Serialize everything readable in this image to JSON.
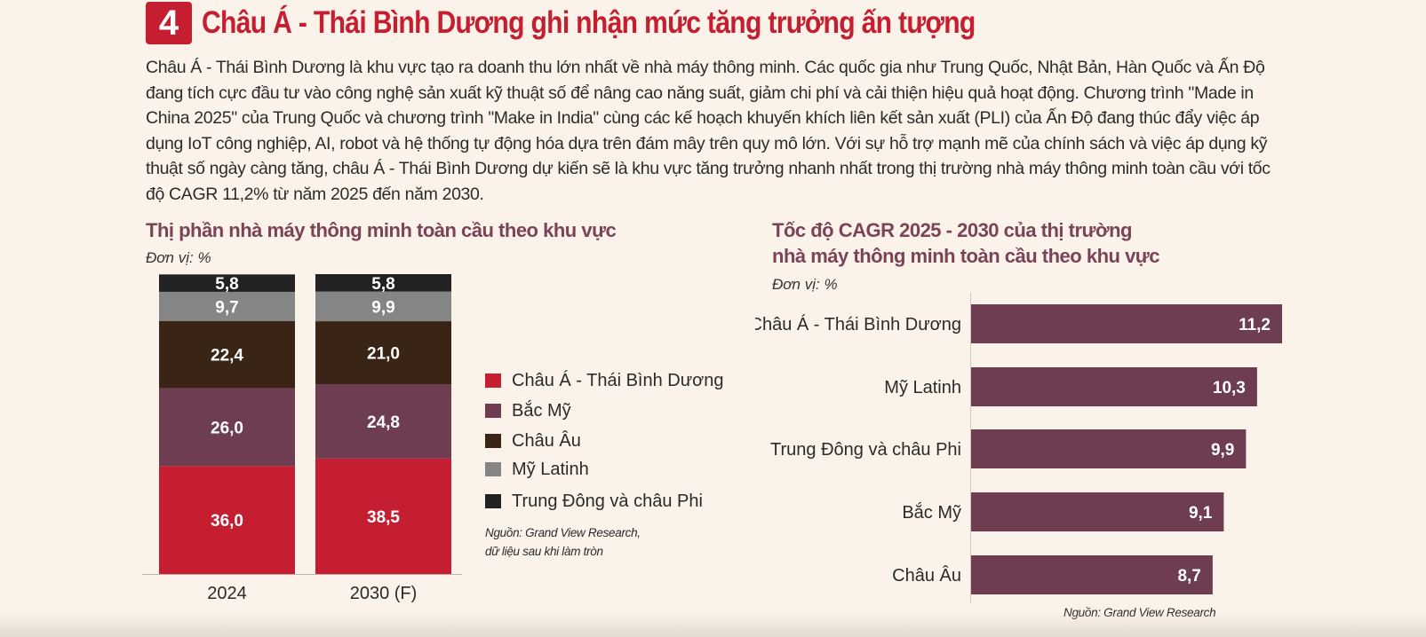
{
  "header": {
    "number": "4",
    "title": "Châu Á - Thái Bình Dương ghi nhận mức tăng trưởng ấn tượng"
  },
  "paragraph": "Châu Á - Thái Bình Dương là khu vực tạo ra doanh thu lớn nhất về nhà máy thông minh. Các quốc gia như Trung Quốc, Nhật Bản, Hàn Quốc và Ấn Độ đang tích cực đầu tư vào công nghệ sản xuất kỹ thuật số để nâng cao năng suất, giảm chi phí và cải thiện hiệu quả hoạt động. Chương trình \"Made in China 2025\" của Trung Quốc và chương trình \"Make in India\" cùng các kế hoạch khuyến khích liên kết sản xuất (PLI) của Ấn Độ đang thúc đẩy việc áp dụng IoT công nghiệp, AI, robot và hệ thống tự động hóa dựa trên đám mây trên quy mô lớn. Với sự hỗ trợ mạnh mẽ của chính sách và việc áp dụng kỹ thuật số ngày càng tăng, châu Á - Thái Bình Dương dự kiến sẽ là khu vực tăng trưởng nhanh nhất trong thị trường nhà máy thông minh toàn cầu với tốc độ CAGR 11,2% từ năm 2025 đến năm 2030.",
  "colors": {
    "brand_red": "#c41e30",
    "asia": "#c41e30",
    "north_america": "#6e3d52",
    "europe": "#3a2416",
    "latin_america": "#858585",
    "mea": "#222222",
    "cagr_bar": "#6e3d52"
  },
  "chart_data": [
    {
      "type": "bar",
      "stacked": true,
      "title": "Thị phần nhà máy thông minh toàn cầu theo khu vực",
      "unit": "Đơn vị: %",
      "categories": [
        "2024",
        "2030 (F)"
      ],
      "series": [
        {
          "name": "Châu Á - Thái Bình Dương",
          "values": [
            36.0,
            38.5
          ],
          "labels": [
            "36,0",
            "38,5"
          ],
          "color": "#c41e30"
        },
        {
          "name": "Bắc Mỹ",
          "values": [
            26.0,
            24.8
          ],
          "labels": [
            "26,0",
            "24,8"
          ],
          "color": "#6e3d52"
        },
        {
          "name": "Châu Âu",
          "values": [
            22.4,
            21.0
          ],
          "labels": [
            "22,4",
            "21,0"
          ],
          "color": "#3a2416"
        },
        {
          "name": "Mỹ Latinh",
          "values": [
            9.7,
            9.9
          ],
          "labels": [
            "9,7",
            "9,9"
          ],
          "color": "#858585"
        },
        {
          "name": "Trung Đông và châu Phi",
          "values": [
            5.8,
            5.8
          ],
          "labels": [
            "5,8",
            "5,8"
          ],
          "color": "#222222"
        }
      ],
      "ylim": [
        0,
        100
      ],
      "legend": "right",
      "source": [
        "Nguồn: Grand View Research,",
        "dữ liệu sau khi làm tròn"
      ]
    },
    {
      "type": "bar",
      "orientation": "horizontal",
      "title": [
        "Tốc độ CAGR 2025 - 2030 của thị trường",
        "nhà máy thông minh toàn cầu theo khu vực"
      ],
      "unit": "Đơn vị: %",
      "categories": [
        "Châu Á - Thái Bình Dương",
        "Mỹ Latinh",
        "Trung Đông và châu Phi",
        "Bắc Mỹ",
        "Châu Âu"
      ],
      "values": [
        11.2,
        10.3,
        9.9,
        9.1,
        8.7
      ],
      "labels": [
        "11,2",
        "10,3",
        "9,9",
        "9,1",
        "8,7"
      ],
      "xlim": [
        0,
        11.2
      ],
      "source": "Nguồn: Grand View Research"
    }
  ]
}
